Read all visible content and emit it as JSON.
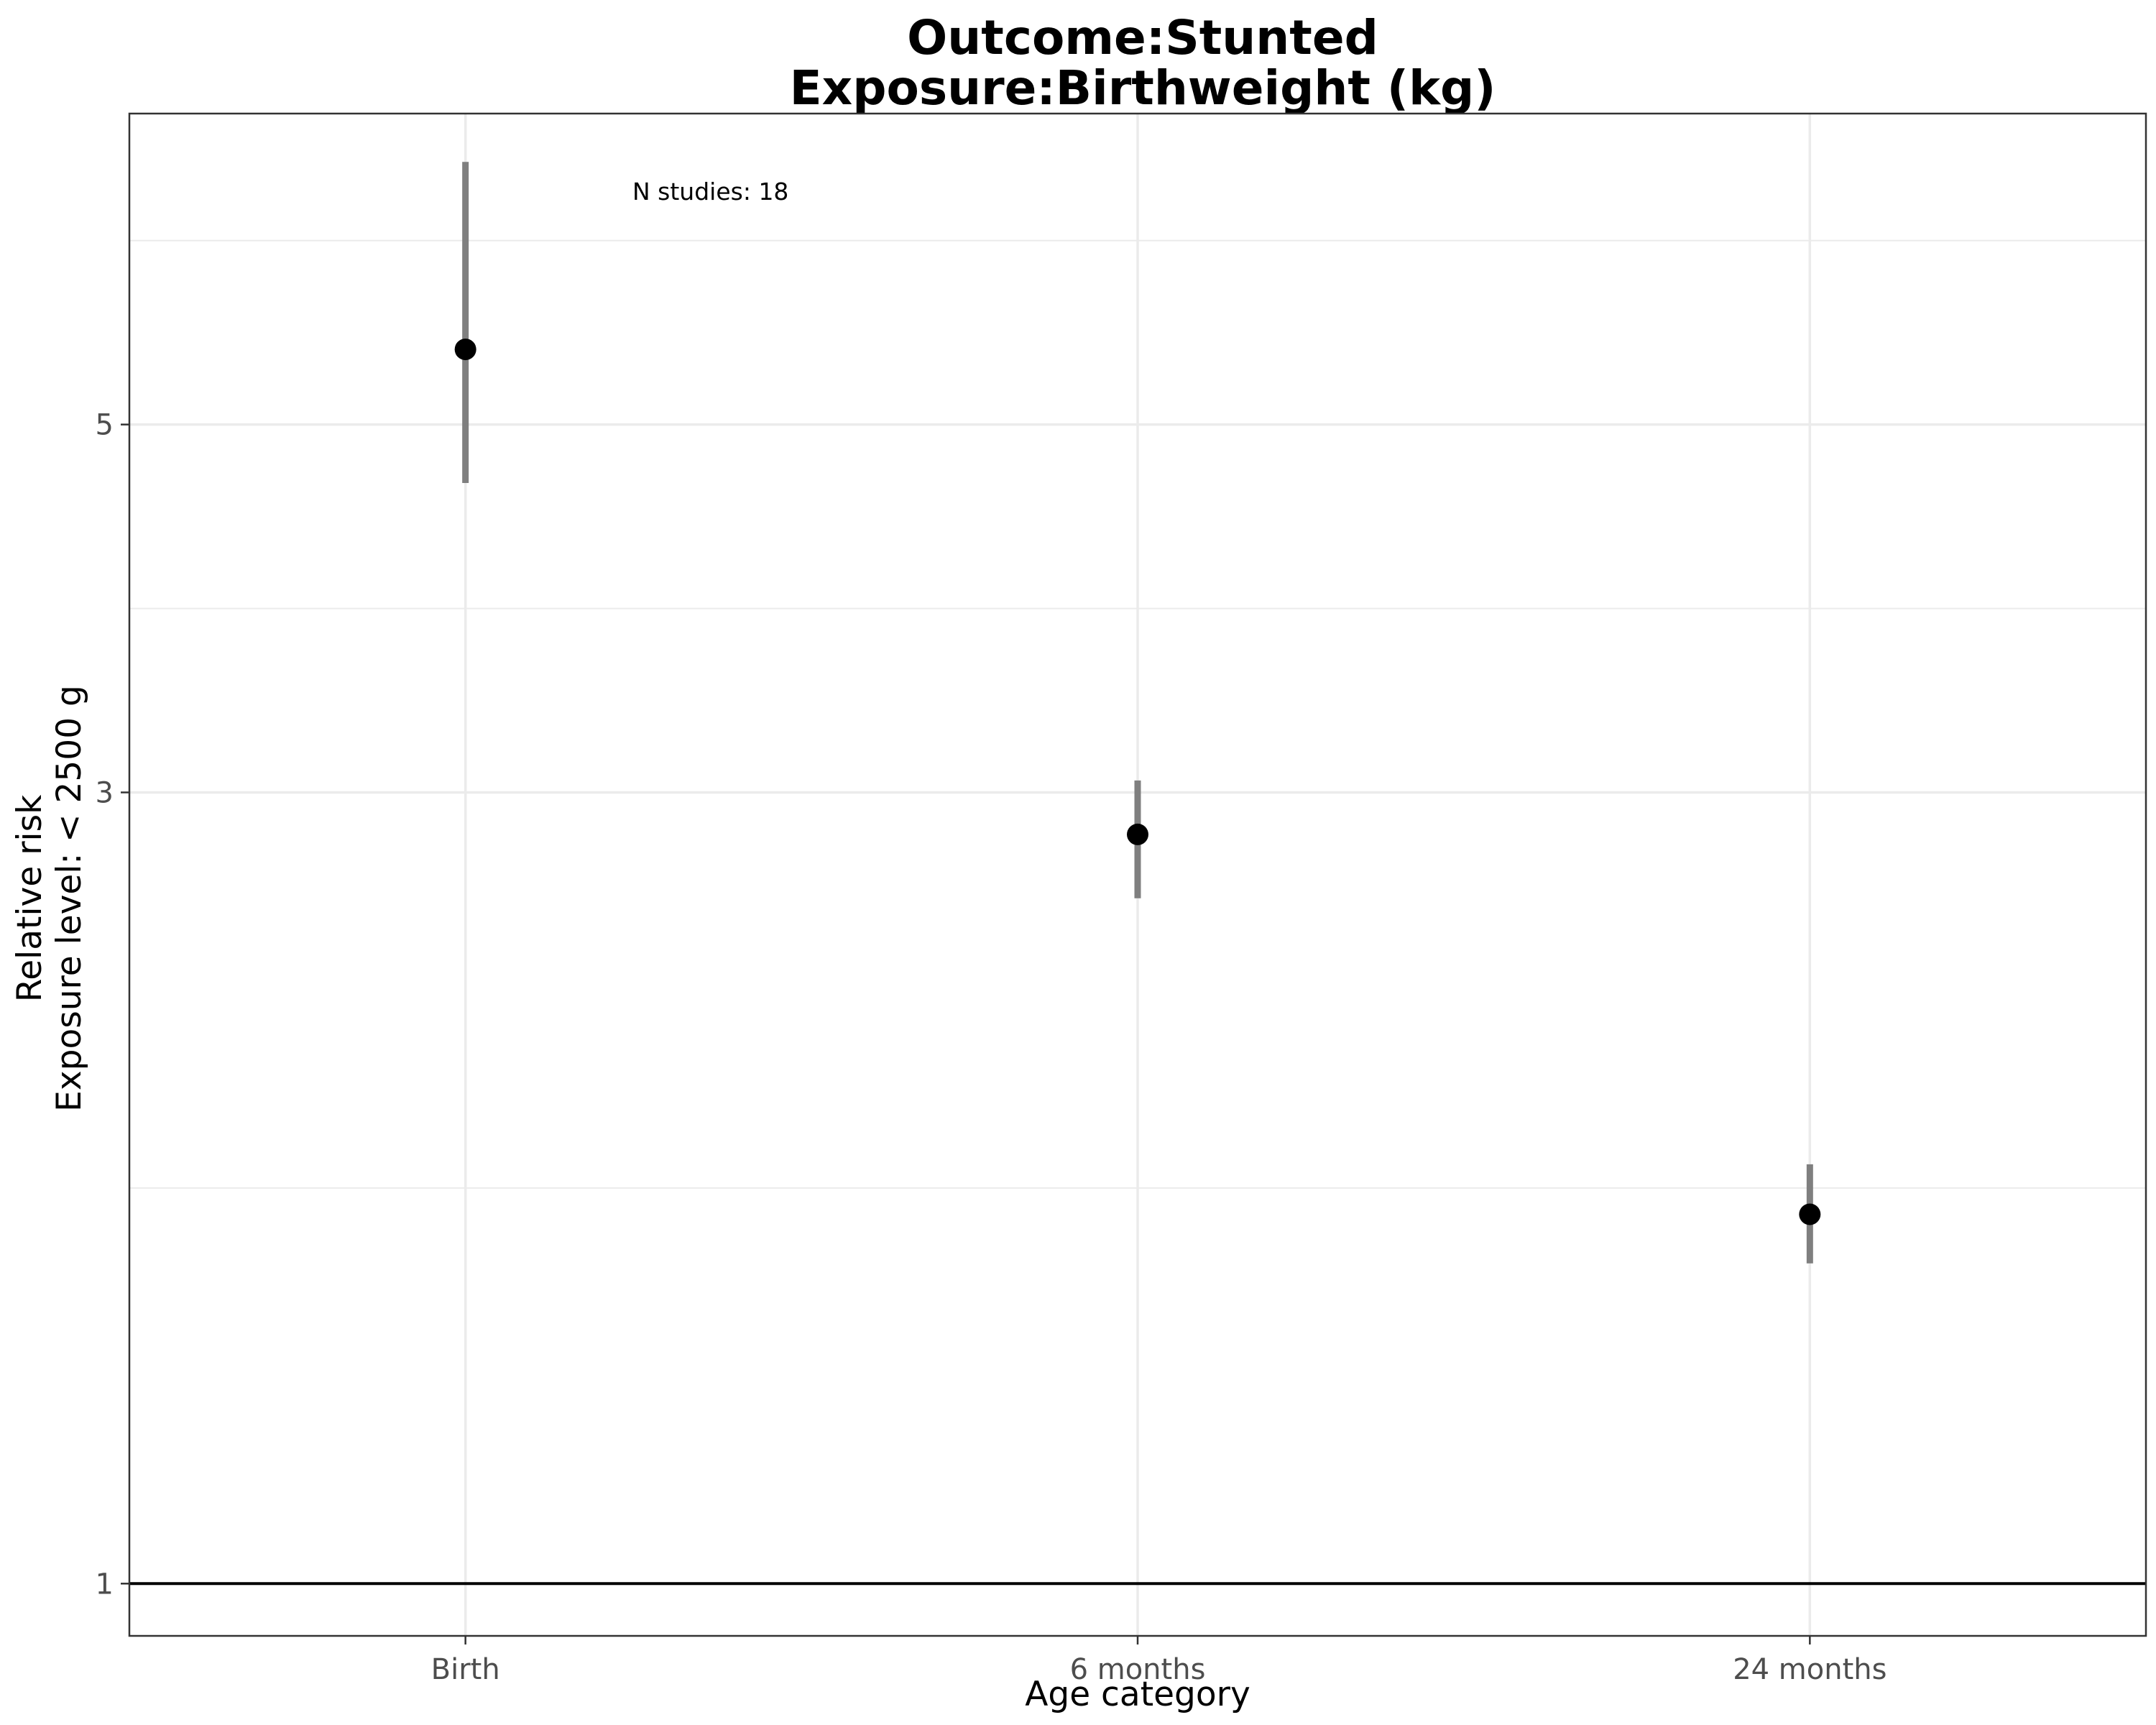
{
  "chart_data": {
    "type": "scatter",
    "title": "Outcome:Stunted",
    "subtitle": "Exposure:Birthweight (kg)",
    "xlabel": "Age category",
    "ylabel": "Relative risk",
    "ylabel_line2": "Exposure level: < 2500 g",
    "y_scale": "log",
    "ylim": [
      0.93,
      7.7
    ],
    "y_ticks": [
      1,
      3,
      5
    ],
    "reference_line": 1,
    "grid": true,
    "legend": "none",
    "annotation": "N studies: 18",
    "categories": [
      "Birth",
      "6 months",
      "24 months"
    ],
    "series": [
      {
        "estimate": [
          5.55,
          2.83,
          1.67
        ],
        "ci_lower": [
          4.61,
          2.59,
          1.56
        ],
        "ci_upper": [
          7.2,
          3.05,
          1.79
        ]
      }
    ],
    "colors": {
      "point": "#000000",
      "errorbar": "#7f7f7f",
      "grid": "#ebebeb",
      "refline": "#000000"
    }
  }
}
